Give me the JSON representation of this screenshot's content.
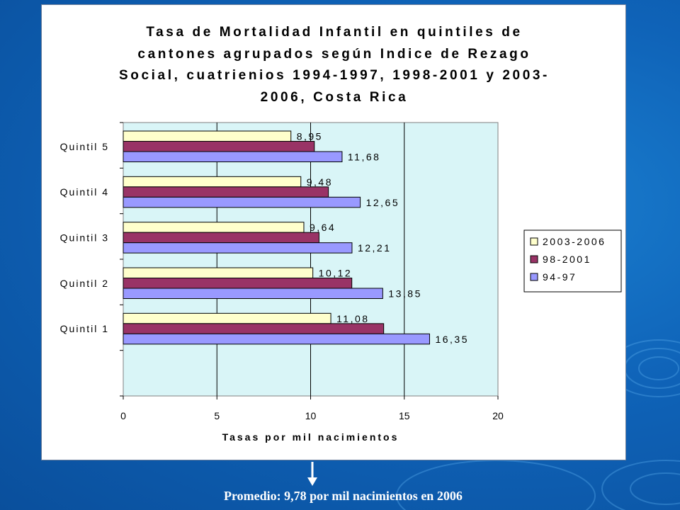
{
  "slide": {
    "footer_note": "Promedio: 9,78 por mil nacimientos en  2006"
  },
  "colors": {
    "background": "#0f63b8",
    "plot_area": "#d9f5f7",
    "series_2003_2006": "#ffffcc",
    "series_98_2001": "#993366",
    "series_94_97": "#9999ff"
  },
  "chart_data": {
    "type": "bar",
    "orientation": "horizontal",
    "title_lines": [
      "Tasa de Mortalidad Infantil en quintiles de",
      "cantones agrupados según Indice de Rezago",
      "Social, cuatrienios 1994-1997, 1998-2001 y 2003-",
      "2006, Costa Rica"
    ],
    "xlabel": "Tasas por mil nacimientos",
    "ylabel": "",
    "xlim": [
      0,
      20
    ],
    "xticks": [
      "0",
      "5",
      "10",
      "15",
      "20"
    ],
    "xtick_values": [
      0,
      5,
      10,
      15,
      20
    ],
    "categories": [
      "Quintil 5",
      "Quintil 4",
      "Quintil 3",
      "Quintil 2",
      "Quintil 1"
    ],
    "series": [
      {
        "name": "2003-2006",
        "values": [
          8.95,
          9.48,
          9.64,
          10.12,
          11.08
        ],
        "labels": [
          "8,95",
          "9,48",
          "9,64",
          "10,12",
          "11,08"
        ],
        "color": "#ffffcc"
      },
      {
        "name": "98-2001",
        "values": [
          10.2,
          10.95,
          10.45,
          12.2,
          13.9
        ],
        "labels": [
          "",
          "",
          "",
          "",
          ""
        ],
        "color": "#993366"
      },
      {
        "name": "94-97",
        "values": [
          11.68,
          12.65,
          12.21,
          13.85,
          16.35
        ],
        "labels": [
          "11,68",
          "12,65",
          "12,21",
          "13,85",
          "16,35"
        ],
        "color": "#9999ff"
      }
    ],
    "legend_position": "right",
    "grid": true
  }
}
